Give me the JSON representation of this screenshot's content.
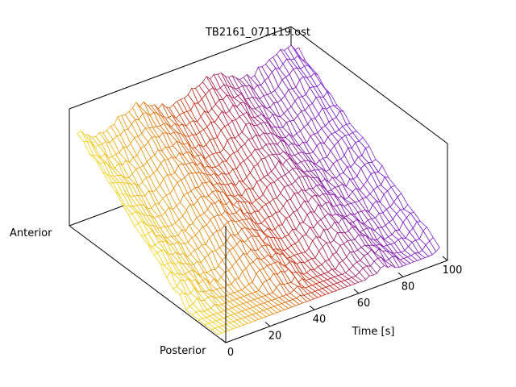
{
  "chart_data": {
    "type": "surface-3d-mesh",
    "title": "TB2161_071119.ost",
    "x_axis": {
      "label": "Time [s]",
      "ticks": [
        0,
        20,
        40,
        60,
        80,
        100
      ],
      "range": [
        0,
        100
      ]
    },
    "y_axis": {
      "labels": [
        "Anterior",
        "Posterior"
      ],
      "range": [
        0,
        1
      ]
    },
    "z_axis": {
      "range": [
        0,
        1
      ]
    },
    "grid": false,
    "colormap": {
      "description": "time-mapped palette, early=yellow/orange, middle=red, late=purple",
      "stops": [
        "#f2d21b",
        "#e88a13",
        "#c82b1a",
        "#8a1ea8",
        "#7b22d6"
      ]
    },
    "surface": {
      "time_range": [
        0,
        100
      ],
      "position_range": [
        0.05,
        0.95
      ],
      "description": "wave-like ridges; amplitude highest near anterior, lower toward posterior"
    }
  }
}
